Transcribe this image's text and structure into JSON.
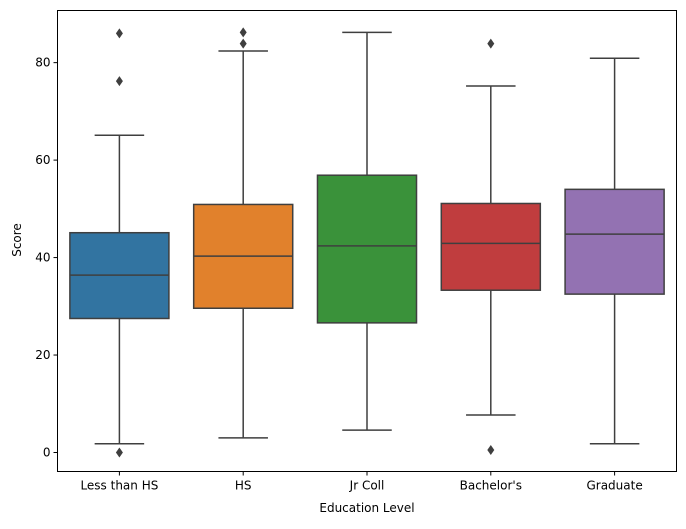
{
  "chart_data": {
    "type": "box",
    "title": "",
    "xlabel": "Education Level",
    "ylabel": "Score",
    "ylim": [
      -3.9,
      90.7
    ],
    "yticks": [
      0,
      20,
      40,
      60,
      80
    ],
    "grid": false,
    "categories": [
      "Less than HS",
      "HS",
      "Jr Coll",
      "Bachelor's",
      "Graduate"
    ],
    "colors": [
      "#3274a1",
      "#e1812c",
      "#3a923a",
      "#c03d3e",
      "#9372b2"
    ],
    "line_color": "#3f3f3f",
    "boxes": [
      {
        "whisker_low": 1.8,
        "q1": 27.5,
        "median": 36.4,
        "q3": 45.1,
        "whisker_high": 65.1,
        "outliers": [
          86.0,
          76.2,
          0.0
        ]
      },
      {
        "whisker_low": 3.0,
        "q1": 29.6,
        "median": 40.3,
        "q3": 50.9,
        "whisker_high": 82.4,
        "outliers": [
          86.2,
          83.9
        ]
      },
      {
        "whisker_low": 4.6,
        "q1": 26.6,
        "median": 42.4,
        "q3": 56.9,
        "whisker_high": 86.2,
        "outliers": []
      },
      {
        "whisker_low": 7.7,
        "q1": 33.3,
        "median": 42.9,
        "q3": 51.1,
        "whisker_high": 75.2,
        "outliers": [
          83.9,
          0.5
        ]
      },
      {
        "whisker_low": 1.8,
        "q1": 32.5,
        "median": 44.8,
        "q3": 54.0,
        "whisker_high": 80.9,
        "outliers": []
      }
    ]
  }
}
